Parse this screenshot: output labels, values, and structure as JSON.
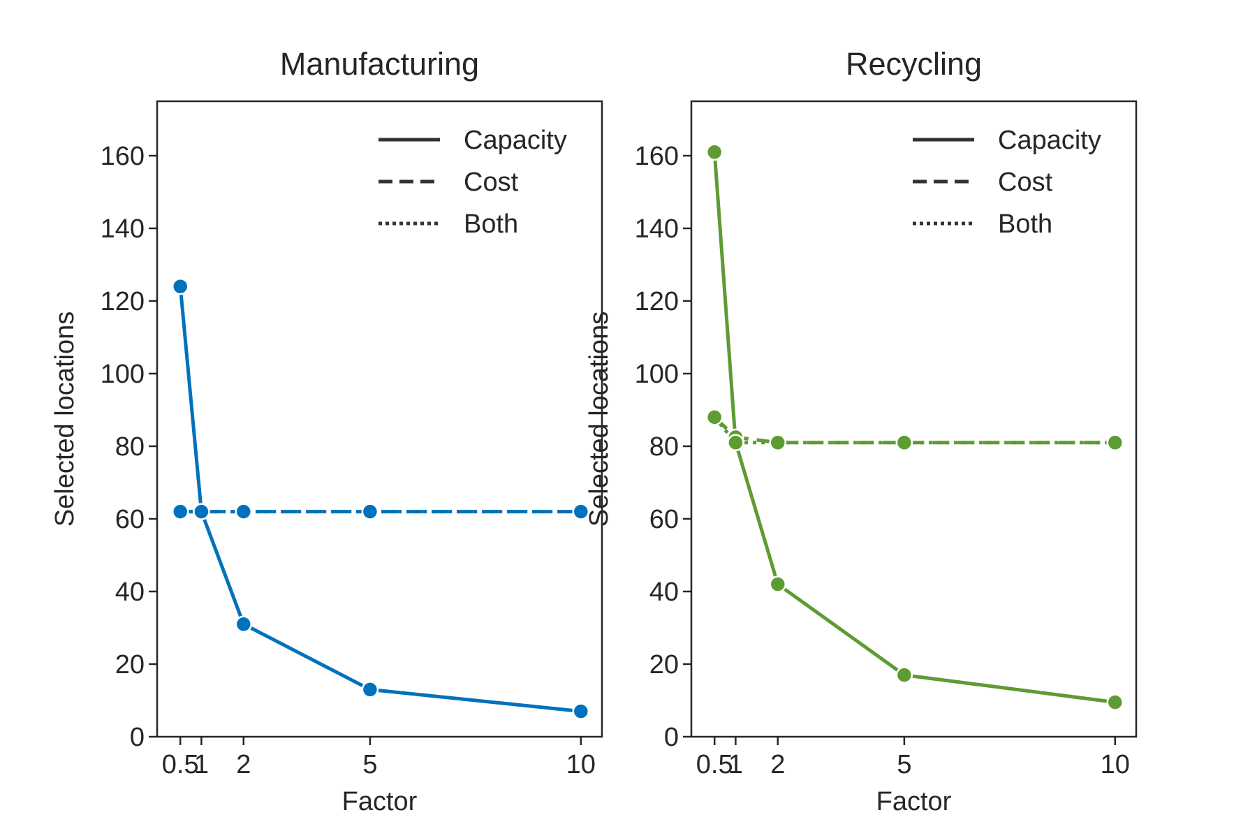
{
  "chart_data": [
    {
      "type": "line",
      "title": "Manufacturing",
      "xlabel": "Factor",
      "ylabel": "Selected locations",
      "x": [
        0.5,
        1,
        2,
        5,
        10
      ],
      "xticks": [
        "0.5",
        "1",
        "2",
        "5",
        "10"
      ],
      "yticks": [
        "0",
        "20",
        "40",
        "60",
        "80",
        "100",
        "120",
        "140",
        "160"
      ],
      "xlim": [
        -0.05,
        10.5
      ],
      "ylim": [
        0,
        175
      ],
      "color": "#0072BD",
      "grid": false,
      "legend_position": "top-right",
      "series": [
        {
          "name": "Capacity",
          "style": "solid",
          "values": [
            124,
            62,
            31,
            13,
            7
          ]
        },
        {
          "name": "Cost",
          "style": "dashed",
          "values": [
            62,
            62,
            62,
            62,
            62
          ]
        },
        {
          "name": "Both",
          "style": "dotted",
          "values": [
            62,
            62,
            62,
            62,
            62
          ]
        }
      ]
    },
    {
      "type": "line",
      "title": "Recycling",
      "xlabel": "Factor",
      "ylabel": "Selected locations",
      "x": [
        0.5,
        1,
        2,
        5,
        10
      ],
      "xticks": [
        "0.5",
        "1",
        "2",
        "5",
        "10"
      ],
      "yticks": [
        "0",
        "20",
        "40",
        "60",
        "80",
        "100",
        "120",
        "140",
        "160"
      ],
      "xlim": [
        -0.05,
        10.5
      ],
      "ylim": [
        0,
        175
      ],
      "color": "#5E9B32",
      "grid": false,
      "legend_position": "top-right",
      "series": [
        {
          "name": "Capacity",
          "style": "solid",
          "values": [
            161,
            81,
            42,
            17,
            9.5
          ]
        },
        {
          "name": "Cost",
          "style": "dashed",
          "values": [
            88,
            82.5,
            81,
            81,
            81
          ]
        },
        {
          "name": "Both",
          "style": "dotted",
          "values": [
            88,
            81,
            81,
            81,
            81
          ]
        }
      ]
    }
  ]
}
